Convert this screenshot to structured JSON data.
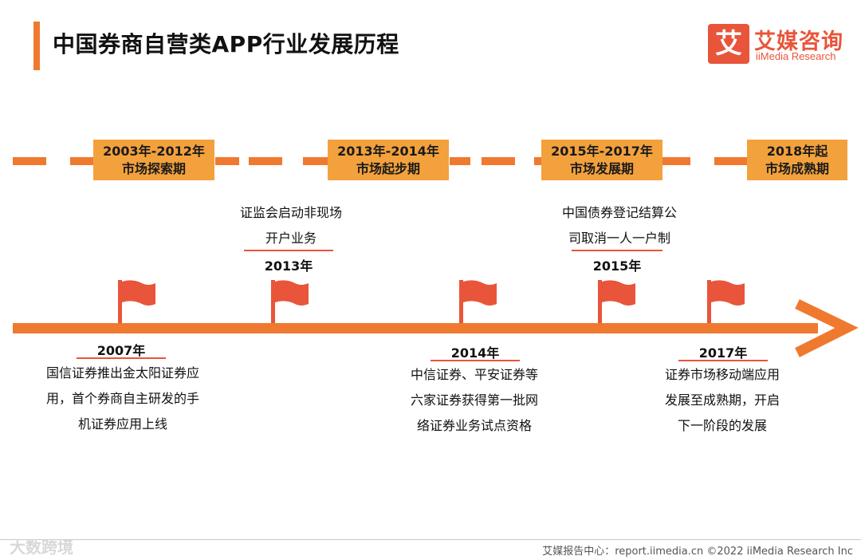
{
  "header": {
    "title": "中国券商自营类APP行业发展历程",
    "logo_mark": "艾",
    "logo_cn": "艾媒咨询",
    "logo_en": "iiMedia Research"
  },
  "periods": [
    {
      "years": "2003年-2012年",
      "label": "市场探索期"
    },
    {
      "years": "2013年-2014年",
      "label": "市场起步期"
    },
    {
      "years": "2015年-2017年",
      "label": "市场发展期"
    },
    {
      "years": "2018年起",
      "label": "市场成熟期"
    }
  ],
  "events_above": [
    {
      "year": "2013年",
      "lines": [
        "证监会启动非现场",
        "开户业务"
      ]
    },
    {
      "year": "2015年",
      "lines": [
        "中国债券登记结算公",
        "司取消一人一户制"
      ]
    }
  ],
  "events_below": [
    {
      "year": "2007年",
      "lines": [
        "国信证券推出金太阳证券应",
        "用，首个券商自主研发的手",
        "机证券应用上线"
      ]
    },
    {
      "year": "2014年",
      "lines": [
        "中信证券、平安证券等",
        "六家证券获得第一批网",
        "络证券业务试点资格"
      ]
    },
    {
      "year": "2017年",
      "lines": [
        "证券市场移动端应用",
        "发展至成熟期，开启",
        "下一阶段的发展"
      ]
    }
  ],
  "footer": {
    "source": "艾媒报告中心：report.iimedia.cn   ©2022  iiMedia Research  Inc",
    "watermark": "大数跨境"
  },
  "colors": {
    "accent": "#ef7a2f",
    "flag": "#e8553a",
    "period_box": "#f3a13d"
  }
}
